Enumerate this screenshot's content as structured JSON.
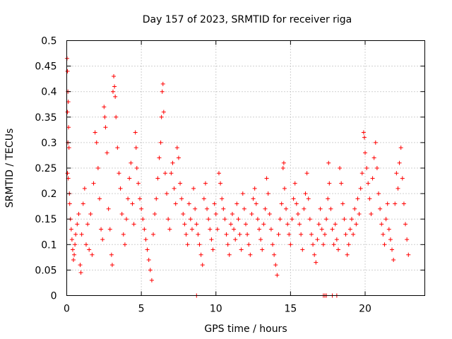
{
  "chart_data": {
    "type": "scatter",
    "title": "Day 157 of 2023, SRMTID for receiver riga",
    "xlabel": "GPS time / hours",
    "ylabel": "SRMTID / TECUs",
    "xlim": [
      0,
      24
    ],
    "ylim": [
      0,
      0.5
    ],
    "x_ticks": [
      0,
      5,
      10,
      15,
      20
    ],
    "x_tick_labels": [
      "0",
      "5",
      "10",
      "15",
      "20"
    ],
    "y_ticks": [
      0,
      0.05,
      0.1,
      0.15,
      0.2,
      0.25,
      0.3,
      0.35,
      0.4,
      0.45,
      0.5
    ],
    "y_tick_labels": [
      "0",
      "0.05",
      "0.1",
      "0.15",
      "0.2",
      "0.25",
      "0.3",
      "0.35",
      "0.4",
      "0.45",
      "0.5"
    ],
    "grid": true,
    "marker": "+",
    "color": "#ff0000",
    "series": [
      {
        "name": "SRMTID",
        "points": [
          [
            0.02,
            0.465
          ],
          [
            0.05,
            0.44
          ],
          [
            0.08,
            0.4
          ],
          [
            0.1,
            0.38
          ],
          [
            0.05,
            0.36
          ],
          [
            0.12,
            0.33
          ],
          [
            0.08,
            0.3
          ],
          [
            0.15,
            0.29
          ],
          [
            0.05,
            0.24
          ],
          [
            0.1,
            0.23
          ],
          [
            0.18,
            0.2
          ],
          [
            0.2,
            0.18
          ],
          [
            0.25,
            0.15
          ],
          [
            0.3,
            0.13
          ],
          [
            0.35,
            0.11
          ],
          [
            0.4,
            0.09
          ],
          [
            0.45,
            0.07
          ],
          [
            0.5,
            0.08
          ],
          [
            0.55,
            0.1
          ],
          [
            0.6,
            0.12
          ],
          [
            0.7,
            0.14
          ],
          [
            0.8,
            0.16
          ],
          [
            0.9,
            0.06
          ],
          [
            0.95,
            0.045
          ],
          [
            1.0,
            0.12
          ],
          [
            1.1,
            0.18
          ],
          [
            1.2,
            0.21
          ],
          [
            1.3,
            0.1
          ],
          [
            1.4,
            0.14
          ],
          [
            1.5,
            0.09
          ],
          [
            1.6,
            0.16
          ],
          [
            1.7,
            0.08
          ],
          [
            1.8,
            0.22
          ],
          [
            1.9,
            0.32
          ],
          [
            2.0,
            0.3
          ],
          [
            2.1,
            0.25
          ],
          [
            2.2,
            0.19
          ],
          [
            2.3,
            0.13
          ],
          [
            2.4,
            0.11
          ],
          [
            2.5,
            0.37
          ],
          [
            2.55,
            0.35
          ],
          [
            2.6,
            0.33
          ],
          [
            2.7,
            0.28
          ],
          [
            2.8,
            0.17
          ],
          [
            2.9,
            0.13
          ],
          [
            3.0,
            0.08
          ],
          [
            3.05,
            0.06
          ],
          [
            3.1,
            0.4
          ],
          [
            3.15,
            0.43
          ],
          [
            3.2,
            0.41
          ],
          [
            3.25,
            0.39
          ],
          [
            3.3,
            0.35
          ],
          [
            3.4,
            0.29
          ],
          [
            3.5,
            0.24
          ],
          [
            3.6,
            0.21
          ],
          [
            3.7,
            0.16
          ],
          [
            3.8,
            0.12
          ],
          [
            3.9,
            0.1
          ],
          [
            4.0,
            0.15
          ],
          [
            4.1,
            0.19
          ],
          [
            4.2,
            0.23
          ],
          [
            4.3,
            0.26
          ],
          [
            4.4,
            0.18
          ],
          [
            4.5,
            0.14
          ],
          [
            4.6,
            0.32
          ],
          [
            4.65,
            0.29
          ],
          [
            4.7,
            0.25
          ],
          [
            4.8,
            0.22
          ],
          [
            4.9,
            0.19
          ],
          [
            5.0,
            0.17
          ],
          [
            5.1,
            0.15
          ],
          [
            5.2,
            0.13
          ],
          [
            5.3,
            0.11
          ],
          [
            5.4,
            0.09
          ],
          [
            5.5,
            0.07
          ],
          [
            5.6,
            0.05
          ],
          [
            5.7,
            0.03
          ],
          [
            5.8,
            0.12
          ],
          [
            5.9,
            0.16
          ],
          [
            6.0,
            0.19
          ],
          [
            6.1,
            0.23
          ],
          [
            6.2,
            0.27
          ],
          [
            6.3,
            0.3
          ],
          [
            6.35,
            0.35
          ],
          [
            6.4,
            0.4
          ],
          [
            6.45,
            0.415
          ],
          [
            6.5,
            0.36
          ],
          [
            6.6,
            0.24
          ],
          [
            6.7,
            0.2
          ],
          [
            6.8,
            0.15
          ],
          [
            6.9,
            0.13
          ],
          [
            7.0,
            0.24
          ],
          [
            7.1,
            0.26
          ],
          [
            7.2,
            0.21
          ],
          [
            7.3,
            0.18
          ],
          [
            7.4,
            0.29
          ],
          [
            7.5,
            0.27
          ],
          [
            7.6,
            0.22
          ],
          [
            7.7,
            0.19
          ],
          [
            7.8,
            0.16
          ],
          [
            7.9,
            0.14
          ],
          [
            8.0,
            0.12
          ],
          [
            8.1,
            0.1
          ],
          [
            8.2,
            0.18
          ],
          [
            8.3,
            0.15
          ],
          [
            8.4,
            0.13
          ],
          [
            8.5,
            0.21
          ],
          [
            8.6,
            0.17
          ],
          [
            8.7,
            0.14
          ],
          [
            8.8,
            0.12
          ],
          [
            8.9,
            0.1
          ],
          [
            9.0,
            0.08
          ],
          [
            9.1,
            0.06
          ],
          [
            9.2,
            0.19
          ],
          [
            9.3,
            0.22
          ],
          [
            9.4,
            0.17
          ],
          [
            9.5,
            0.15
          ],
          [
            9.6,
            0.13
          ],
          [
            9.7,
            0.11
          ],
          [
            9.8,
            0.09
          ],
          [
            9.9,
            0.18
          ],
          [
            10.0,
            0.16
          ],
          [
            10.1,
            0.13
          ],
          [
            10.2,
            0.24
          ],
          [
            10.3,
            0.22
          ],
          [
            10.4,
            0.19
          ],
          [
            10.5,
            0.17
          ],
          [
            10.6,
            0.15
          ],
          [
            10.7,
            0.12
          ],
          [
            10.8,
            0.1
          ],
          [
            10.9,
            0.08
          ],
          [
            11.0,
            0.14
          ],
          [
            11.1,
            0.16
          ],
          [
            11.2,
            0.13
          ],
          [
            11.3,
            0.11
          ],
          [
            11.4,
            0.18
          ],
          [
            11.5,
            0.15
          ],
          [
            11.6,
            0.12
          ],
          [
            11.7,
            0.09
          ],
          [
            11.8,
            0.2
          ],
          [
            11.9,
            0.17
          ],
          [
            12.0,
            0.14
          ],
          [
            12.1,
            0.12
          ],
          [
            12.2,
            0.1
          ],
          [
            12.3,
            0.08
          ],
          [
            12.4,
            0.16
          ],
          [
            12.5,
            0.19
          ],
          [
            12.6,
            0.21
          ],
          [
            12.7,
            0.18
          ],
          [
            12.8,
            0.15
          ],
          [
            12.9,
            0.13
          ],
          [
            13.0,
            0.11
          ],
          [
            13.1,
            0.09
          ],
          [
            13.2,
            0.14
          ],
          [
            13.3,
            0.17
          ],
          [
            13.4,
            0.23
          ],
          [
            13.5,
            0.2
          ],
          [
            13.6,
            0.16
          ],
          [
            13.7,
            0.13
          ],
          [
            13.8,
            0.1
          ],
          [
            13.9,
            0.08
          ],
          [
            14.0,
            0.06
          ],
          [
            14.1,
            0.04
          ],
          [
            14.2,
            0.12
          ],
          [
            14.3,
            0.15
          ],
          [
            14.4,
            0.18
          ],
          [
            14.5,
            0.25
          ],
          [
            14.55,
            0.26
          ],
          [
            14.6,
            0.21
          ],
          [
            14.7,
            0.17
          ],
          [
            14.8,
            0.14
          ],
          [
            14.9,
            0.12
          ],
          [
            15.0,
            0.1
          ],
          [
            15.1,
            0.15
          ],
          [
            15.2,
            0.19
          ],
          [
            15.3,
            0.22
          ],
          [
            15.4,
            0.18
          ],
          [
            15.5,
            0.16
          ],
          [
            15.6,
            0.14
          ],
          [
            15.7,
            0.12
          ],
          [
            15.8,
            0.09
          ],
          [
            15.9,
            0.17
          ],
          [
            16.0,
            0.2
          ],
          [
            16.1,
            0.24
          ],
          [
            16.2,
            0.19
          ],
          [
            16.3,
            0.15
          ],
          [
            16.4,
            0.12
          ],
          [
            16.5,
            0.1
          ],
          [
            16.6,
            0.08
          ],
          [
            16.7,
            0.065
          ],
          [
            16.8,
            0.11
          ],
          [
            16.9,
            0.14
          ],
          [
            17.0,
            0.17
          ],
          [
            17.1,
            0.13
          ],
          [
            17.2,
            0.1
          ],
          [
            17.3,
            0.12
          ],
          [
            17.4,
            0.15
          ],
          [
            17.5,
            0.19
          ],
          [
            17.55,
            0.26
          ],
          [
            17.6,
            0.22
          ],
          [
            17.7,
            0.17
          ],
          [
            17.8,
            0.13
          ],
          [
            17.9,
            0.1
          ],
          [
            18.0,
            0.14
          ],
          [
            18.1,
            0.11
          ],
          [
            18.2,
            0.09
          ],
          [
            18.3,
            0.25
          ],
          [
            18.4,
            0.22
          ],
          [
            18.5,
            0.18
          ],
          [
            18.6,
            0.15
          ],
          [
            18.7,
            0.12
          ],
          [
            18.8,
            0.08
          ],
          [
            18.9,
            0.1
          ],
          [
            19.0,
            0.13
          ],
          [
            19.1,
            0.15
          ],
          [
            19.2,
            0.12
          ],
          [
            19.3,
            0.17
          ],
          [
            19.4,
            0.14
          ],
          [
            19.5,
            0.19
          ],
          [
            19.6,
            0.16
          ],
          [
            19.7,
            0.21
          ],
          [
            19.8,
            0.24
          ],
          [
            19.9,
            0.32
          ],
          [
            19.95,
            0.31
          ],
          [
            20.0,
            0.28
          ],
          [
            20.1,
            0.25
          ],
          [
            20.2,
            0.22
          ],
          [
            20.3,
            0.19
          ],
          [
            20.4,
            0.16
          ],
          [
            20.5,
            0.23
          ],
          [
            20.6,
            0.27
          ],
          [
            20.7,
            0.3
          ],
          [
            20.8,
            0.25
          ],
          [
            20.9,
            0.2
          ],
          [
            21.0,
            0.17
          ],
          [
            21.1,
            0.14
          ],
          [
            21.2,
            0.12
          ],
          [
            21.3,
            0.1
          ],
          [
            21.4,
            0.15
          ],
          [
            21.5,
            0.18
          ],
          [
            21.6,
            0.13
          ],
          [
            21.7,
            0.11
          ],
          [
            21.8,
            0.09
          ],
          [
            21.9,
            0.07
          ],
          [
            22.0,
            0.18
          ],
          [
            22.1,
            0.24
          ],
          [
            22.2,
            0.21
          ],
          [
            22.3,
            0.26
          ],
          [
            22.4,
            0.29
          ],
          [
            22.5,
            0.23
          ],
          [
            22.6,
            0.18
          ],
          [
            22.7,
            0.14
          ],
          [
            22.8,
            0.11
          ],
          [
            22.9,
            0.08
          ],
          [
            8.7,
            0.0
          ],
          [
            17.2,
            0.0
          ],
          [
            17.3,
            0.0
          ],
          [
            17.4,
            0.0
          ],
          [
            17.8,
            0.0
          ],
          [
            18.1,
            0.0
          ]
        ]
      }
    ]
  }
}
